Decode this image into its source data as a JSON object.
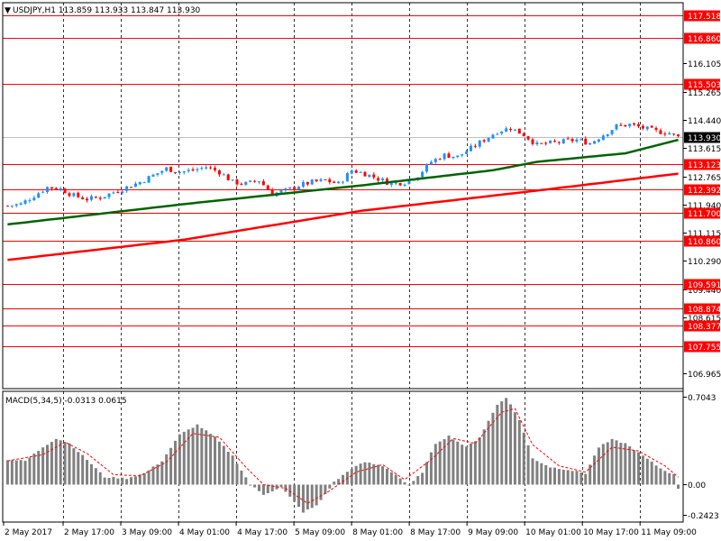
{
  "header": {
    "symbol_line": "USDJPY,H1  113.859 113.933 113.847 113.930",
    "menu_glyph": "▼"
  },
  "price_axis": {
    "ticks": [
      "116.105",
      "115.265",
      "114.440",
      "113.615",
      "112.765",
      "111.940",
      "111.115",
      "110.290",
      "109.440",
      "108.615",
      "106.965"
    ],
    "tick_values": [
      116.105,
      115.265,
      114.44,
      113.615,
      112.765,
      111.94,
      111.115,
      110.29,
      109.44,
      108.615,
      106.965
    ],
    "min": 106.5,
    "max": 117.9,
    "current_price": "113.930",
    "current_value": 113.93
  },
  "levels": {
    "labels": [
      "117.518",
      "116.860",
      "115.503",
      "113.123",
      "112.392",
      "111.700",
      "110.860",
      "109.591",
      "108.874",
      "108.377",
      "107.755"
    ],
    "values": [
      117.518,
      116.86,
      115.503,
      113.123,
      112.392,
      111.7,
      110.86,
      109.591,
      108.874,
      108.377,
      107.755
    ],
    "color": "#ff0000"
  },
  "time_axis": {
    "labels": [
      "2 May 2017",
      "2 May 17:00",
      "3 May 09:00",
      "4 May 01:00",
      "4 May 17:00",
      "5 May 09:00",
      "8 May 01:00",
      "8 May 17:00",
      "9 May 09:00",
      "10 May 01:00",
      "10 May 17:00",
      "11 May 09:00"
    ]
  },
  "macd": {
    "title": "MACD(5,34,5) -0.0313 0.0615",
    "axis_labels": [
      "0.7043",
      "0.00",
      "-0.2423"
    ],
    "axis_values": [
      0.7043,
      0.0,
      -0.2423
    ]
  },
  "colors": {
    "bull_candle": "#1e90ff",
    "bear_candle": "#ff0000",
    "ma_slow": "#ff0000",
    "ma_fast": "#006400",
    "histogram": "#808080",
    "signal": "#ff0000",
    "current_price_bg": "#000000"
  },
  "chart_data": [
    {
      "type": "candlestick",
      "title": "USDJPY,H1",
      "ylim": [
        106.5,
        117.9
      ],
      "close_path": [
        {
          "t": 0,
          "v": 111.9
        },
        {
          "t": 3,
          "v": 111.95
        },
        {
          "t": 6,
          "v": 112.2
        },
        {
          "t": 9,
          "v": 112.45
        },
        {
          "t": 12,
          "v": 112.4
        },
        {
          "t": 15,
          "v": 112.2
        },
        {
          "t": 18,
          "v": 112.1
        },
        {
          "t": 21,
          "v": 112.15
        },
        {
          "t": 24,
          "v": 112.3
        },
        {
          "t": 27,
          "v": 112.45
        },
        {
          "t": 30,
          "v": 112.6
        },
        {
          "t": 33,
          "v": 112.8
        },
        {
          "t": 36,
          "v": 113.0
        },
        {
          "t": 39,
          "v": 112.9
        },
        {
          "t": 42,
          "v": 112.95
        },
        {
          "t": 45,
          "v": 113.05
        },
        {
          "t": 48,
          "v": 112.9
        },
        {
          "t": 51,
          "v": 112.6
        },
        {
          "t": 54,
          "v": 112.55
        },
        {
          "t": 57,
          "v": 112.65
        },
        {
          "t": 60,
          "v": 112.25
        },
        {
          "t": 63,
          "v": 112.35
        },
        {
          "t": 66,
          "v": 112.5
        },
        {
          "t": 69,
          "v": 112.6
        },
        {
          "t": 72,
          "v": 112.65
        },
        {
          "t": 75,
          "v": 112.55
        },
        {
          "t": 78,
          "v": 112.95
        },
        {
          "t": 81,
          "v": 112.85
        },
        {
          "t": 84,
          "v": 112.7
        },
        {
          "t": 87,
          "v": 112.55
        },
        {
          "t": 90,
          "v": 112.6
        },
        {
          "t": 93,
          "v": 112.8
        },
        {
          "t": 96,
          "v": 113.2
        },
        {
          "t": 99,
          "v": 113.4
        },
        {
          "t": 102,
          "v": 113.35
        },
        {
          "t": 105,
          "v": 113.6
        },
        {
          "t": 108,
          "v": 113.85
        },
        {
          "t": 111,
          "v": 114.1
        },
        {
          "t": 114,
          "v": 114.2
        },
        {
          "t": 117,
          "v": 114.0
        },
        {
          "t": 120,
          "v": 113.7
        },
        {
          "t": 123,
          "v": 113.75
        },
        {
          "t": 126,
          "v": 113.8
        },
        {
          "t": 129,
          "v": 113.85
        },
        {
          "t": 132,
          "v": 113.75
        },
        {
          "t": 135,
          "v": 114.0
        },
        {
          "t": 138,
          "v": 114.25
        },
        {
          "t": 141,
          "v": 114.3
        },
        {
          "t": 144,
          "v": 114.2
        },
        {
          "t": 147,
          "v": 114.1
        },
        {
          "t": 150,
          "v": 114.05
        },
        {
          "t": 152,
          "v": 113.93
        }
      ],
      "ma_fast": [
        {
          "t": 0,
          "v": 111.35
        },
        {
          "t": 40,
          "v": 111.95
        },
        {
          "t": 80,
          "v": 112.5
        },
        {
          "t": 110,
          "v": 112.95
        },
        {
          "t": 120,
          "v": 113.2
        },
        {
          "t": 140,
          "v": 113.45
        },
        {
          "t": 152,
          "v": 113.85
        }
      ],
      "ma_slow": [
        {
          "t": 0,
          "v": 110.3
        },
        {
          "t": 40,
          "v": 110.9
        },
        {
          "t": 80,
          "v": 111.75
        },
        {
          "t": 120,
          "v": 112.35
        },
        {
          "t": 152,
          "v": 112.85
        }
      ]
    },
    {
      "type": "bar",
      "title": "MACD(5,34,5)",
      "ylim": [
        -0.2423,
        0.7043
      ],
      "histogram_path": [
        {
          "t": 0,
          "v": 0.2
        },
        {
          "t": 4,
          "v": 0.19
        },
        {
          "t": 8,
          "v": 0.3
        },
        {
          "t": 11,
          "v": 0.37
        },
        {
          "t": 14,
          "v": 0.33
        },
        {
          "t": 18,
          "v": 0.2
        },
        {
          "t": 22,
          "v": 0.06
        },
        {
          "t": 27,
          "v": 0.05
        },
        {
          "t": 31,
          "v": 0.09
        },
        {
          "t": 35,
          "v": 0.19
        },
        {
          "t": 39,
          "v": 0.4
        },
        {
          "t": 43,
          "v": 0.48
        },
        {
          "t": 47,
          "v": 0.38
        },
        {
          "t": 51,
          "v": 0.23
        },
        {
          "t": 55,
          "v": 0.0
        },
        {
          "t": 58,
          "v": -0.08
        },
        {
          "t": 62,
          "v": -0.02
        },
        {
          "t": 64,
          "v": -0.1
        },
        {
          "t": 67,
          "v": -0.22
        },
        {
          "t": 70,
          "v": -0.17
        },
        {
          "t": 74,
          "v": 0.02
        },
        {
          "t": 78,
          "v": 0.13
        },
        {
          "t": 81,
          "v": 0.18
        },
        {
          "t": 85,
          "v": 0.15
        },
        {
          "t": 88,
          "v": 0.08
        },
        {
          "t": 91,
          "v": -0.01
        },
        {
          "t": 94,
          "v": 0.1
        },
        {
          "t": 97,
          "v": 0.33
        },
        {
          "t": 100,
          "v": 0.39
        },
        {
          "t": 104,
          "v": 0.3
        },
        {
          "t": 107,
          "v": 0.38
        },
        {
          "t": 111,
          "v": 0.64
        },
        {
          "t": 113,
          "v": 0.7
        },
        {
          "t": 116,
          "v": 0.52
        },
        {
          "t": 119,
          "v": 0.21
        },
        {
          "t": 123,
          "v": 0.14
        },
        {
          "t": 127,
          "v": 0.12
        },
        {
          "t": 131,
          "v": 0.09
        },
        {
          "t": 134,
          "v": 0.3
        },
        {
          "t": 137,
          "v": 0.36
        },
        {
          "t": 140,
          "v": 0.33
        },
        {
          "t": 144,
          "v": 0.23
        },
        {
          "t": 148,
          "v": 0.13
        },
        {
          "t": 151,
          "v": 0.08
        },
        {
          "t": 152,
          "v": -0.03
        }
      ],
      "signal_path": [
        {
          "t": 0,
          "v": 0.19
        },
        {
          "t": 8,
          "v": 0.24
        },
        {
          "t": 13,
          "v": 0.34
        },
        {
          "t": 18,
          "v": 0.25
        },
        {
          "t": 24,
          "v": 0.08
        },
        {
          "t": 30,
          "v": 0.07
        },
        {
          "t": 36,
          "v": 0.18
        },
        {
          "t": 42,
          "v": 0.41
        },
        {
          "t": 48,
          "v": 0.38
        },
        {
          "t": 54,
          "v": 0.14
        },
        {
          "t": 58,
          "v": 0.0
        },
        {
          "t": 63,
          "v": -0.03
        },
        {
          "t": 68,
          "v": -0.15
        },
        {
          "t": 73,
          "v": -0.05
        },
        {
          "t": 79,
          "v": 0.1
        },
        {
          "t": 85,
          "v": 0.16
        },
        {
          "t": 90,
          "v": 0.04
        },
        {
          "t": 96,
          "v": 0.2
        },
        {
          "t": 101,
          "v": 0.37
        },
        {
          "t": 106,
          "v": 0.33
        },
        {
          "t": 112,
          "v": 0.58
        },
        {
          "t": 115,
          "v": 0.61
        },
        {
          "t": 119,
          "v": 0.32
        },
        {
          "t": 125,
          "v": 0.15
        },
        {
          "t": 131,
          "v": 0.1
        },
        {
          "t": 137,
          "v": 0.3
        },
        {
          "t": 143,
          "v": 0.27
        },
        {
          "t": 149,
          "v": 0.15
        },
        {
          "t": 152,
          "v": 0.06
        }
      ]
    }
  ]
}
